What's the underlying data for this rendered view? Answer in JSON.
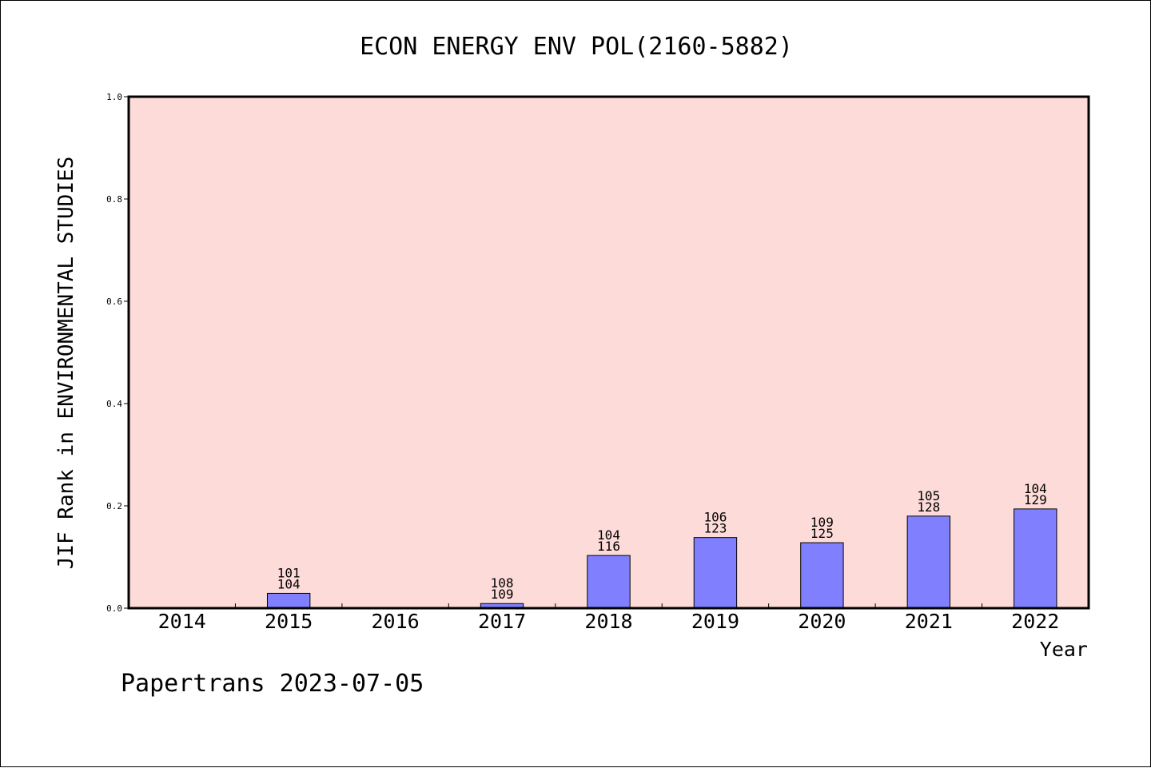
{
  "chart_data": {
    "type": "bar",
    "title": "ECON ENERGY ENV POL(2160-5882)",
    "xlabel": "Year",
    "ylabel": "JIF Rank in ENVIRONMENTAL STUDIES",
    "categories": [
      "2014",
      "2015",
      "2016",
      "2017",
      "2018",
      "2019",
      "2020",
      "2021",
      "2022"
    ],
    "values": [
      null,
      0.029,
      null,
      0.009,
      0.103,
      0.138,
      0.128,
      0.18,
      0.194
    ],
    "rank": [
      null,
      "101",
      null,
      "108",
      "104",
      "106",
      "109",
      "105",
      "104"
    ],
    "total": [
      null,
      "104",
      null,
      "109",
      "116",
      "123",
      "125",
      "128",
      "129"
    ],
    "ylim": [
      0,
      1.0
    ],
    "yticks": [
      "0.0",
      "0.2",
      "0.4",
      "0.6",
      "0.8",
      "1.0"
    ],
    "grid": false,
    "plot_background": "#fddbd8",
    "bar_color": "#8080ff",
    "footer": "Papertrans 2023-07-05"
  }
}
